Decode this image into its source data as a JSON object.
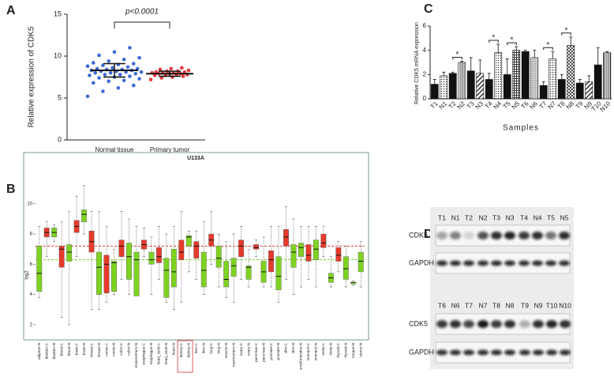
{
  "panels": [
    "A",
    "B",
    "C",
    "D"
  ],
  "chart_data": [
    {
      "type": "strip",
      "ylabel": "Relative expression of CDK5",
      "annotation": "p<0.0001",
      "categories": [
        "Normal tissue",
        "Primary tumor"
      ],
      "colors": [
        "#3d6ad6",
        "#e8383a"
      ],
      "values": [
        [
          5.2,
          5.8,
          6.2,
          6.5,
          6.8,
          7.0,
          7.1,
          7.3,
          7.4,
          7.5,
          7.6,
          7.7,
          7.8,
          7.8,
          7.9,
          8.0,
          8.0,
          8.1,
          8.1,
          8.2,
          8.2,
          8.3,
          8.3,
          8.4,
          8.4,
          8.5,
          8.5,
          8.6,
          8.7,
          8.8,
          8.9,
          9.0,
          9.1,
          9.2,
          9.4,
          9.6,
          9.8,
          10.1,
          10.5,
          11.0
        ],
        [
          7.2,
          7.4,
          7.5,
          7.6,
          7.7,
          7.7,
          7.8,
          7.8,
          7.9,
          7.9,
          7.9,
          8.0,
          8.0,
          8.0,
          8.1,
          8.1,
          8.2,
          8.2,
          8.3,
          8.4,
          8.5,
          8.6
        ]
      ],
      "means": [
        8.3,
        7.9
      ],
      "sd": [
        0.8,
        0.3
      ],
      "ylim": [
        0,
        15
      ],
      "yticks": [
        0,
        5,
        10,
        15
      ]
    },
    {
      "type": "box",
      "title": "U133A",
      "ylabel": "log2",
      "categories": [
        "adipose-N",
        "bladder-C",
        "bladder-N",
        "blood-C",
        "blood-N",
        "brain-C",
        "brain-N",
        "breast-C",
        "breast-N",
        "cervix-C",
        "cervix-N",
        "colon-C",
        "colon-N",
        "endometrium-N",
        "esophagus-C",
        "esophagus-N",
        "head_neck-C",
        "head_neck-N",
        "heart-N",
        "kidney-C",
        "kidney-N",
        "liver-C",
        "liver-N",
        "lung-C",
        "lung-N",
        "muscle-N",
        "myometrium-N",
        "ovary-C",
        "ovary-N",
        "pancreas-C",
        "pancreas-N",
        "prostate-C",
        "prostate-N",
        "skin-C",
        "skin-N",
        "small intestine-N",
        "stomach-C",
        "stomach-N",
        "testis-C",
        "testis-N",
        "thyroid-C",
        "thyroid-N",
        "tongue-N",
        "uterus-N"
      ],
      "colors": [
        "#7ed321",
        "#e53a2c",
        "#7ed321",
        "#e53a2c",
        "#7ed321",
        "#e53a2c",
        "#7ed321",
        "#e53a2c",
        "#7ed321",
        "#e53a2c",
        "#7ed321",
        "#e53a2c",
        "#7ed321",
        "#7ed321",
        "#e53a2c",
        "#7ed321",
        "#e53a2c",
        "#7ed321",
        "#7ed321",
        "#e53a2c",
        "#7ed321",
        "#e53a2c",
        "#7ed321",
        "#e53a2c",
        "#7ed321",
        "#7ed321",
        "#7ed321",
        "#e53a2c",
        "#7ed321",
        "#e53a2c",
        "#7ed321",
        "#e53a2c",
        "#7ed321",
        "#e53a2c",
        "#7ed321",
        "#7ed321",
        "#e53a2c",
        "#7ed321",
        "#e53a2c",
        "#7ed321",
        "#e53a2c",
        "#7ed321",
        "#7ed321",
        "#7ed321"
      ],
      "boxes": [
        [
          3.8,
          4.2,
          5.4,
          7.2,
          8.5
        ],
        [
          6.5,
          7.8,
          8.1,
          8.4,
          8.8
        ],
        [
          7.5,
          7.8,
          8.1,
          8.4,
          8.6
        ],
        [
          2.5,
          5.8,
          7.0,
          7.2,
          8.8
        ],
        [
          2.0,
          6.2,
          6.8,
          7.3,
          9.5
        ],
        [
          6.5,
          8.1,
          8.5,
          8.9,
          10.5
        ],
        [
          8.0,
          8.8,
          9.3,
          9.6,
          11.2
        ],
        [
          3.0,
          6.8,
          7.5,
          8.2,
          9.5
        ],
        [
          3.0,
          4.0,
          5.8,
          6.8,
          9.5
        ],
        [
          3.5,
          4.1,
          6.0,
          6.6,
          8.5
        ],
        [
          4.0,
          4.2,
          6.1,
          6.2,
          7.0
        ],
        [
          5.0,
          6.5,
          7.2,
          7.6,
          9.5
        ],
        [
          4.0,
          5.0,
          6.5,
          7.4,
          9.0
        ],
        [
          4.0,
          3.9,
          6.3,
          6.8,
          8.5
        ],
        [
          6.5,
          7.0,
          7.3,
          7.6,
          8.4
        ],
        [
          4.0,
          6.0,
          6.3,
          6.8,
          7.8
        ],
        [
          5.0,
          6.1,
          6.5,
          7.1,
          8.5
        ],
        [
          3.5,
          3.8,
          5.6,
          6.4,
          8.0
        ],
        [
          3.0,
          4.5,
          5.5,
          7.0,
          8.5
        ],
        [
          3.5,
          6.3,
          6.8,
          7.6,
          9.5
        ],
        [
          5.5,
          7.2,
          7.8,
          7.9,
          8.2
        ],
        [
          5.0,
          6.4,
          7.2,
          7.5,
          8.2
        ],
        [
          4.0,
          4.5,
          5.6,
          6.8,
          8.8
        ],
        [
          6.0,
          7.2,
          7.6,
          8.0,
          9.5
        ],
        [
          4.5,
          5.8,
          6.4,
          7.2,
          8.0
        ],
        [
          3.8,
          4.5,
          5.0,
          6.2,
          7.5
        ],
        [
          3.5,
          5.2,
          5.9,
          6.4,
          8.0
        ],
        [
          5.0,
          6.5,
          7.2,
          7.6,
          8.5
        ],
        [
          4.5,
          5.0,
          5.8,
          5.9,
          7.0
        ],
        [
          6.5,
          7.0,
          7.1,
          7.3,
          7.6
        ],
        [
          4.5,
          4.8,
          5.5,
          6.2,
          7.8
        ],
        [
          4.5,
          5.5,
          6.3,
          6.9,
          8.5
        ],
        [
          3.5,
          4.3,
          5.2,
          6.5,
          8.5
        ],
        [
          5.0,
          7.2,
          7.8,
          8.3,
          9.8
        ],
        [
          4.0,
          5.8,
          6.8,
          7.3,
          9.0
        ],
        [
          4.5,
          6.5,
          7.1,
          7.4,
          8.5
        ],
        [
          5.0,
          6.2,
          6.6,
          7.3,
          8.5
        ],
        [
          4.5,
          6.3,
          7.0,
          7.6,
          8.5
        ],
        [
          6.5,
          7.1,
          7.4,
          8.0,
          8.5
        ],
        [
          4.5,
          4.8,
          5.1,
          5.4,
          6.5
        ],
        [
          5.5,
          6.2,
          6.6,
          7.1,
          7.5
        ],
        [
          4.5,
          5.0,
          5.7,
          6.5,
          7.2
        ],
        [
          4.6,
          4.7,
          4.8,
          4.8,
          4.9
        ],
        [
          4.5,
          5.5,
          6.2,
          6.8,
          7.5
        ]
      ],
      "reference_lines": [
        {
          "value": 7.2,
          "color": "#e53a2c"
        },
        {
          "value": 6.3,
          "color": "#7ed321"
        }
      ],
      "ylim": [
        1,
        12.5
      ],
      "yticks": [
        2,
        4,
        6,
        8,
        10
      ]
    },
    {
      "type": "bar",
      "ylabel": "Relative CDK5 mRNA expression",
      "xlabel": "Samples",
      "categories": [
        "T1",
        "N1",
        "T2",
        "N2",
        "T3",
        "N3",
        "T4",
        "N4",
        "T5",
        "N5",
        "T6",
        "N6",
        "T7",
        "N7",
        "T8",
        "N8",
        "T9",
        "N9",
        "T10",
        "N10"
      ],
      "values": [
        1.2,
        1.9,
        2.1,
        3.0,
        2.3,
        2.1,
        1.6,
        3.8,
        2.0,
        4.0,
        3.9,
        3.4,
        1.1,
        3.3,
        1.6,
        4.4,
        1.3,
        1.4,
        2.8,
        3.8
      ],
      "errors": [
        0.4,
        0.3,
        0.1,
        0.1,
        1.1,
        1.1,
        0.5,
        0.7,
        1.3,
        0.3,
        0.1,
        0.6,
        0.3,
        0.6,
        0.4,
        0.7,
        0.3,
        0.5,
        1.4,
        0.1
      ],
      "color": "#111111",
      "annotations": [
        {
          "text": "*",
          "from": 2,
          "to": 3
        },
        {
          "text": "*",
          "from": 6,
          "to": 7
        },
        {
          "text": "*",
          "from": 8,
          "to": 9
        },
        {
          "text": "*",
          "from": 12,
          "to": 13
        },
        {
          "text": "*",
          "from": 14,
          "to": 15
        }
      ],
      "ylim": [
        0,
        6
      ],
      "yticks": [
        0,
        2,
        4,
        6
      ]
    }
  ],
  "blot": {
    "top_lanes": [
      "T1",
      "N1",
      "T2",
      "N2",
      "T3",
      "N3",
      "T4",
      "N4",
      "T5",
      "N5"
    ],
    "bottom_lanes": [
      "T6",
      "N6",
      "T7",
      "N7",
      "T8",
      "N8",
      "T9",
      "N9",
      "T10",
      "N10"
    ],
    "top_rows": [
      "CDK5",
      "GAPDH"
    ],
    "bottom_rows": [
      "CDK5",
      "GAPDH"
    ]
  }
}
